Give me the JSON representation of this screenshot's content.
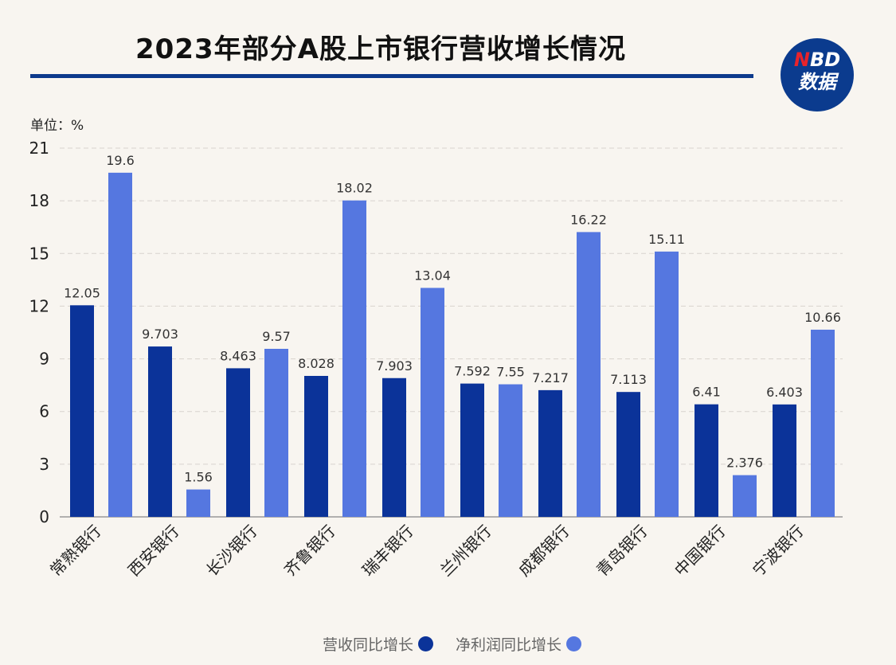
{
  "title": "2023年部分A股上市银行营收增长情况",
  "logo": {
    "top": "NBD",
    "bottom": "数据"
  },
  "unit_label": "单位：%",
  "colors": {
    "revenue": "#0b3399",
    "net_profit": "#5577e0",
    "rule": "#0d3a8c"
  },
  "chart_data": {
    "type": "bar",
    "categories": [
      "常熟银行",
      "西安银行",
      "长沙银行",
      "齐鲁银行",
      "瑞丰银行",
      "兰州银行",
      "成都银行",
      "青岛银行",
      "中国银行",
      "宁波银行"
    ],
    "series": [
      {
        "name": "营收同比增长",
        "values": [
          12.05,
          9.703,
          8.463,
          8.028,
          7.903,
          7.592,
          7.217,
          7.113,
          6.41,
          6.403
        ],
        "labels": [
          "12.05",
          "9.703",
          "8.463",
          "8.028",
          "7.903",
          "7.592",
          "7.217",
          "7.113",
          "6.41",
          "6.403"
        ]
      },
      {
        "name": "净利润同比增长",
        "values": [
          19.6,
          1.56,
          9.57,
          18.02,
          13.04,
          7.55,
          16.22,
          15.11,
          2.376,
          10.66
        ],
        "labels": [
          "19.6",
          "1.56",
          "9.57",
          "18.02",
          "13.04",
          "7.55",
          "16.22",
          "15.11",
          "2.376",
          "10.66"
        ]
      }
    ],
    "yticks": [
      "0",
      "3",
      "6",
      "9",
      "12",
      "15",
      "18",
      "21"
    ],
    "ylim": [
      0,
      21
    ],
    "grid": true,
    "legend_position": "bottom"
  }
}
